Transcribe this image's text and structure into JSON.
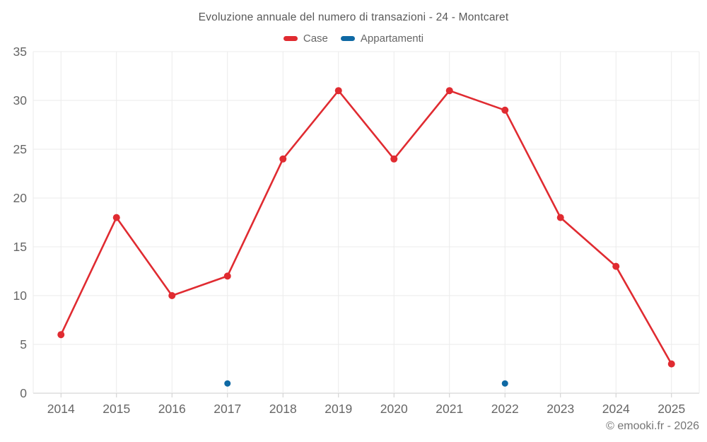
{
  "title": "Evoluzione annuale del numero di transazioni - 24 - Montcaret",
  "footer": "© emooki.fr - 2026",
  "legend": {
    "items": [
      {
        "label": "Case",
        "color": "#e02b31"
      },
      {
        "label": "Appartamenti",
        "color": "#0f69a4"
      }
    ]
  },
  "colors": {
    "grid": "#ebebeb",
    "axis_line": "#cccccc",
    "tick_label": "#666666",
    "title_text": "#595959",
    "footer_text": "#757575",
    "background": "#ffffff"
  },
  "chart_data": {
    "type": "line",
    "title": "Evoluzione annuale del numero di transazioni - 24 - Montcaret",
    "x": [
      2014,
      2015,
      2016,
      2017,
      2018,
      2019,
      2020,
      2021,
      2022,
      2023,
      2024,
      2025
    ],
    "series": [
      {
        "name": "Case",
        "color": "#e02b31",
        "marker_radius": 5,
        "values": [
          6,
          18,
          10,
          12,
          24,
          31,
          24,
          31,
          29,
          18,
          13,
          3
        ]
      },
      {
        "name": "Appartamenti",
        "color": "#0f69a4",
        "marker_radius": 4.5,
        "values": [
          null,
          null,
          null,
          1,
          null,
          null,
          null,
          null,
          1,
          null,
          null,
          null
        ]
      }
    ],
    "xlabel": "",
    "ylabel": "",
    "ylim": [
      0,
      35
    ],
    "yticks": [
      0,
      5,
      10,
      15,
      20,
      25,
      30,
      35
    ],
    "grid": true,
    "legend_position": "top"
  }
}
